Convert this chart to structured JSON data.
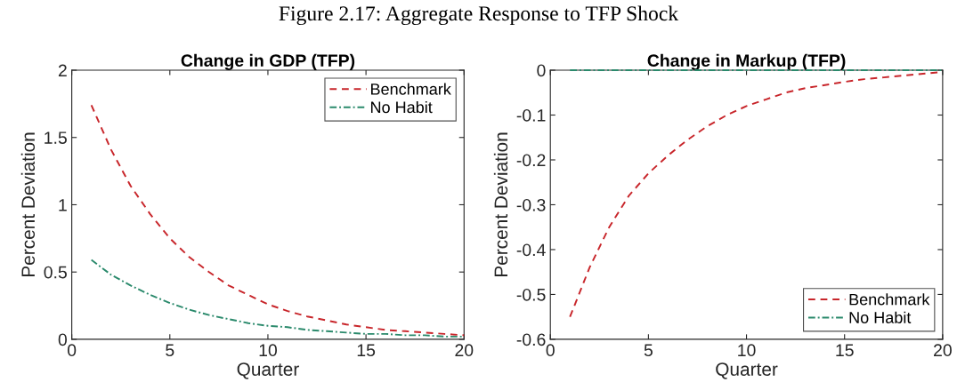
{
  "chart_data": [
    {
      "type": "line",
      "title": "Change in GDP (TFP)",
      "xlabel": "Quarter",
      "ylabel": "Percent Deviation",
      "annotations": [
        "Figure 2.17: Aggregate Response to TFP Shock"
      ],
      "x": [
        1,
        2,
        3,
        4,
        5,
        6,
        7,
        8,
        9,
        10,
        11,
        12,
        13,
        14,
        15,
        16,
        17,
        18,
        19,
        20
      ],
      "xlim": [
        0,
        20
      ],
      "xticks": [
        0,
        5,
        10,
        15,
        20
      ],
      "ylim": [
        0,
        2
      ],
      "yticks": [
        0,
        0.5,
        1,
        1.5,
        2
      ],
      "grid": false,
      "legend": "top right",
      "series": [
        {
          "name": "Benchmark",
          "color": "#c8262b",
          "line_style": "dashed",
          "values": [
            1.74,
            1.41,
            1.14,
            0.93,
            0.75,
            0.61,
            0.5,
            0.4,
            0.33,
            0.26,
            0.21,
            0.17,
            0.14,
            0.11,
            0.09,
            0.07,
            0.06,
            0.05,
            0.04,
            0.03
          ]
        },
        {
          "name": "No Habit",
          "color": "#2b8a6c",
          "line_style": "dashdot",
          "values": [
            0.59,
            0.48,
            0.4,
            0.33,
            0.27,
            0.22,
            0.18,
            0.15,
            0.12,
            0.1,
            0.09,
            0.07,
            0.06,
            0.05,
            0.04,
            0.04,
            0.03,
            0.03,
            0.02,
            0.02
          ]
        }
      ]
    },
    {
      "type": "line",
      "title": "Change in Markup (TFP)",
      "xlabel": "Quarter",
      "ylabel": "Percent Deviation",
      "x": [
        1,
        2,
        3,
        4,
        5,
        6,
        7,
        8,
        9,
        10,
        11,
        12,
        13,
        14,
        15,
        16,
        17,
        18,
        19,
        20
      ],
      "xlim": [
        0,
        20
      ],
      "xticks": [
        0,
        5,
        10,
        15,
        20
      ],
      "ylim": [
        -0.6,
        0
      ],
      "yticks": [
        {
          "value": -0.6,
          "label": "-0.6"
        },
        {
          "value": -0.5,
          "label": "-0.5"
        },
        {
          "value": -0.4,
          "label": "-0.4"
        },
        {
          "value": -0.3,
          "label": "-0.3"
        },
        {
          "value": -0.2,
          "label": "-0.2"
        },
        {
          "value": -0.1,
          "label": "-0.1"
        },
        0
      ],
      "grid": false,
      "legend": "bottom right",
      "series": [
        {
          "name": "Benchmark",
          "color": "#c8262b",
          "line_style": "dashed",
          "values": [
            -0.55,
            -0.44,
            -0.35,
            -0.28,
            -0.23,
            -0.19,
            -0.155,
            -0.125,
            -0.1,
            -0.08,
            -0.065,
            -0.05,
            -0.04,
            -0.033,
            -0.026,
            -0.02,
            -0.016,
            -0.012,
            -0.008,
            -0.004
          ]
        },
        {
          "name": "No Habit",
          "color": "#2b8a6c",
          "line_style": "dashdot",
          "values": [
            0,
            0,
            0,
            0,
            0,
            0,
            0,
            0,
            0,
            0,
            0,
            0,
            0,
            0,
            0,
            0,
            0,
            0,
            0,
            0
          ]
        }
      ]
    }
  ]
}
